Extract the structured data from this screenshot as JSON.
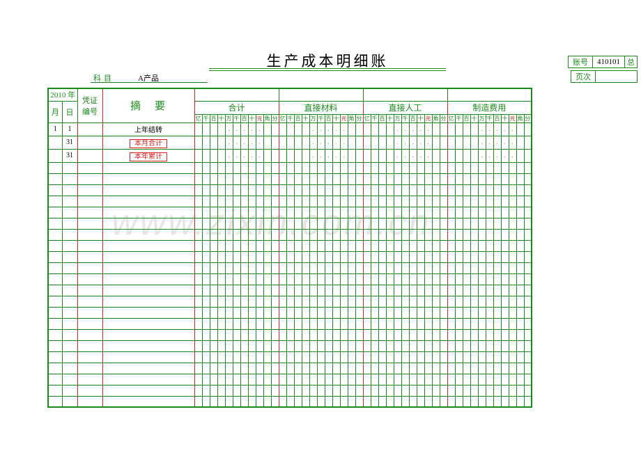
{
  "title": "生产成本明细账",
  "account_label": "账号",
  "account_value": "410101",
  "account_extra": "总",
  "page_label": "页次",
  "subject_label": "科目",
  "subject_value": "A产品",
  "header": {
    "year": "2010 年",
    "month": "月",
    "day": "日",
    "voucher": "凭证\n编号",
    "summary": "摘要",
    "groups": [
      "合计",
      "直接材料",
      "直接人工",
      "制造费用"
    ],
    "digits": [
      "亿",
      "千",
      "百",
      "十",
      "万",
      "千",
      "百",
      "十",
      "元",
      "角",
      "分"
    ]
  },
  "rows": [
    {
      "month": "1",
      "day": "1",
      "voucher": "",
      "summary": "上年结转",
      "summary_class": "black-text",
      "summary_box": false,
      "filled": true
    },
    {
      "month": "",
      "day": "31",
      "voucher": "",
      "summary": "本月合计",
      "summary_class": "",
      "summary_box": true,
      "filled": true
    },
    {
      "month": "",
      "day": "31",
      "voucher": "",
      "summary": "本年累计",
      "summary_class": "",
      "summary_box": true,
      "filled": true
    }
  ],
  "empty_rows": 22,
  "colors": {
    "green": "#1a8a1a",
    "red": "#d91e1e"
  },
  "watermark": "www.zixin.com.cn"
}
